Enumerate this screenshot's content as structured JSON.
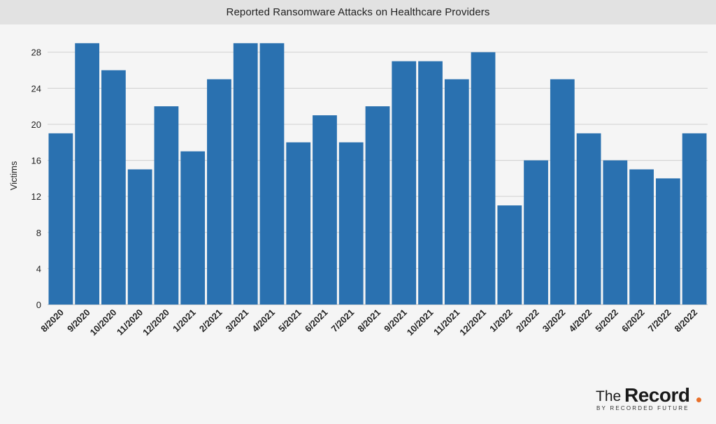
{
  "header": {
    "title": "Reported Ransomware Attacks on Healthcare Providers"
  },
  "branding": {
    "logo_the": "The",
    "logo_record": "Record",
    "logo_sub": "BY RECORDED FUTURE",
    "accent_color": "#e8702a"
  },
  "colors": {
    "bar": "#2a71b0",
    "grid": "#cfcfcf",
    "text": "#222222"
  },
  "chart_data": {
    "type": "bar",
    "title": "Reported Ransomware Attacks on Healthcare Providers",
    "xlabel": "",
    "ylabel": "Victims",
    "ylim": [
      0,
      28.6
    ],
    "yticks": [
      0,
      4,
      8,
      12,
      16,
      20,
      24,
      28
    ],
    "grid": true,
    "categories": [
      "8/2020",
      "9/2020",
      "10/2020",
      "11/2020",
      "12/2020",
      "1/2021",
      "2/2021",
      "3/2021",
      "4/2021",
      "5/2021",
      "6/2021",
      "7/2021",
      "8/2021",
      "9/2021",
      "10/2021",
      "11/2021",
      "12/2021",
      "1/2022",
      "2/2022",
      "3/2022",
      "4/2022",
      "5/2022",
      "6/2022",
      "7/2022",
      "8/2022"
    ],
    "values": [
      19,
      29,
      26,
      15,
      22,
      17,
      25,
      29,
      29,
      18,
      21,
      18,
      22,
      27,
      27,
      25,
      28,
      11,
      16,
      25,
      19,
      16,
      15,
      14,
      19
    ]
  }
}
